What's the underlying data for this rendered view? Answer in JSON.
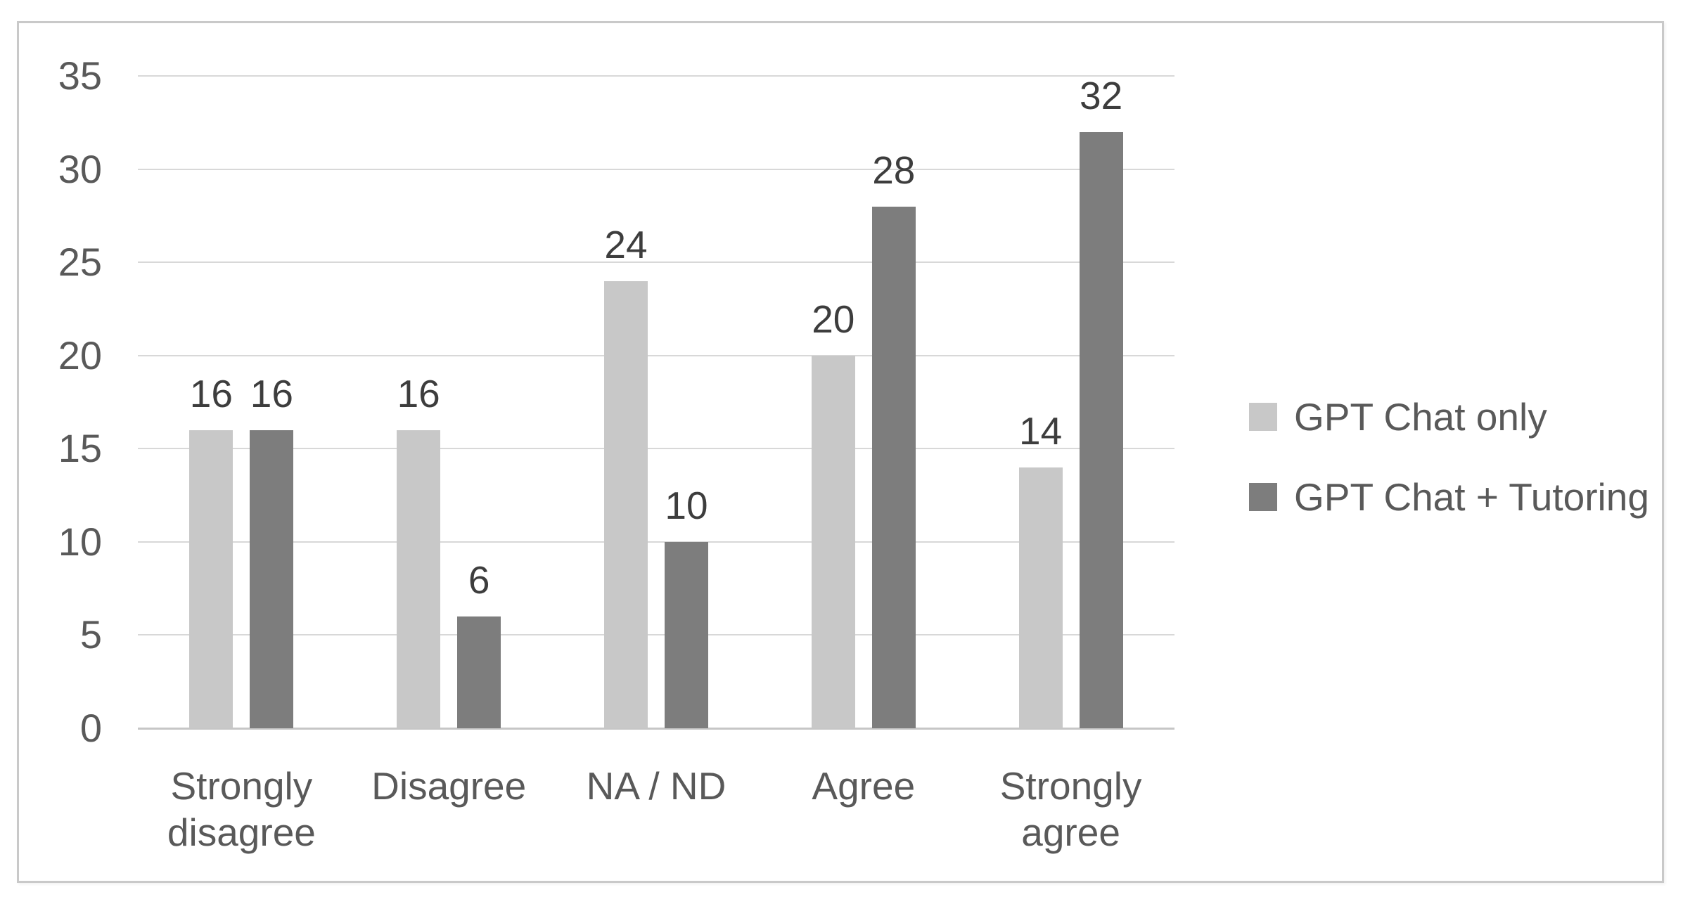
{
  "chart_data": {
    "type": "bar",
    "title": "",
    "xlabel": "",
    "ylabel": "",
    "categories": [
      "Strongly disagree",
      "Disagree",
      "NA / ND",
      "Agree",
      "Strongly agree"
    ],
    "series": [
      {
        "name": "GPT Chat only",
        "color": "#c8c8c8",
        "values": [
          16,
          16,
          24,
          20,
          14
        ]
      },
      {
        "name": "GPT Chat + Tutoring",
        "color": "#7d7d7d",
        "values": [
          16,
          6,
          10,
          28,
          32
        ]
      }
    ],
    "ylim": [
      0,
      35
    ],
    "ytick_step": 5,
    "yticks": [
      0,
      5,
      10,
      15,
      20,
      25,
      30,
      35
    ],
    "grid": "horizontal",
    "legend_position": "right",
    "data_labels": true,
    "colors": {
      "gridline": "#d8d8d8",
      "axis_line": "#c6c6c6",
      "tick_label": "#595959",
      "category_label": "#595959",
      "data_label": "#3d3d3d",
      "legend_label": "#595959",
      "frame_border": "#c9c9c9",
      "background": "#ffffff"
    }
  }
}
